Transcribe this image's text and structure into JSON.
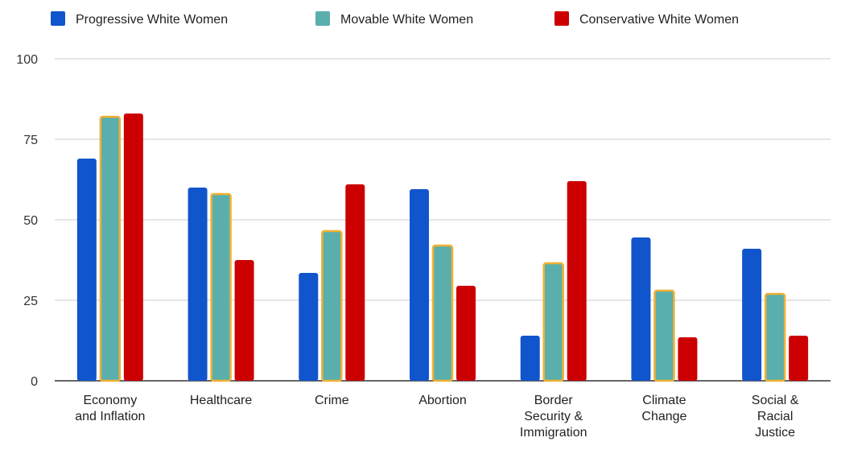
{
  "chart_data": {
    "type": "bar",
    "title": "",
    "xlabel": "",
    "ylabel": "",
    "ylim": [
      0,
      100
    ],
    "yticks": [
      0,
      25,
      50,
      75,
      100
    ],
    "grid": true,
    "legend": "top",
    "categories": [
      [
        "Economy",
        "and Inflation"
      ],
      [
        "Healthcare"
      ],
      [
        "Crime"
      ],
      [
        "Abortion"
      ],
      [
        "Border",
        "Security &",
        "Immigration"
      ],
      [
        "Climate",
        "Change"
      ],
      [
        "Social &",
        "Racial",
        "Justice"
      ]
    ],
    "series": [
      {
        "name": "Progressive White Women",
        "color": "#1155cc",
        "outline": "",
        "values": [
          69,
          60,
          33.5,
          59.5,
          14,
          44.5,
          41
        ]
      },
      {
        "name": "Movable White Women",
        "color": "#5aafad",
        "outline": "#f2b134",
        "values": [
          82,
          58,
          46.5,
          42,
          36.5,
          28,
          27
        ]
      },
      {
        "name": "Conservative White Women",
        "color": "#cc0000",
        "outline": "",
        "values": [
          83,
          37.5,
          61,
          29.5,
          62,
          13.5,
          14
        ]
      }
    ]
  }
}
